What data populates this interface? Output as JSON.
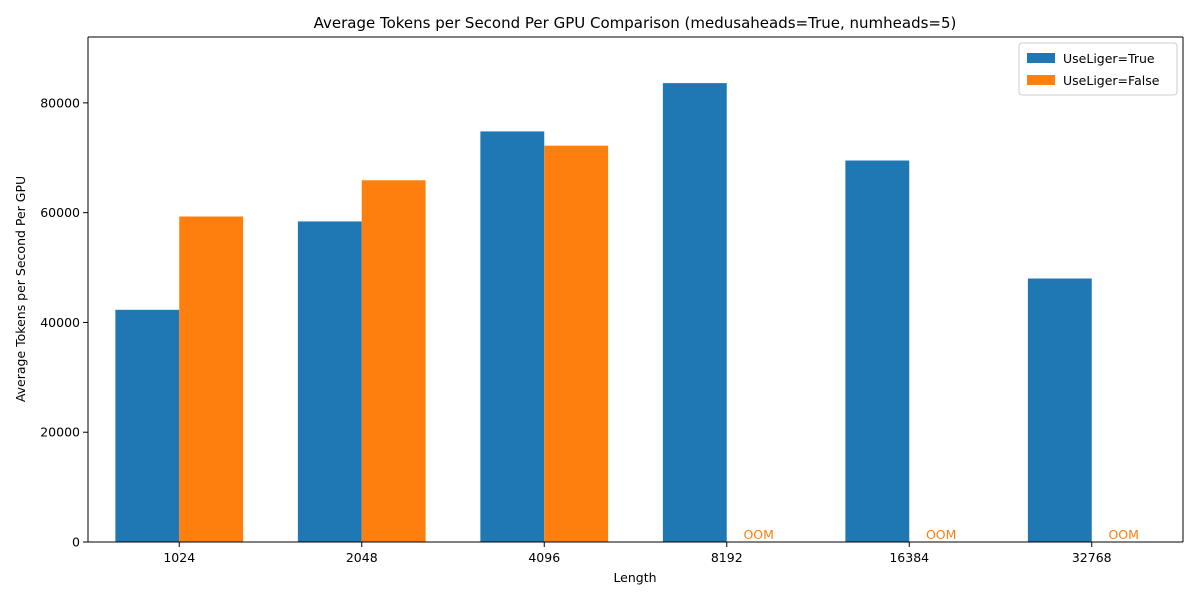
{
  "chart_data": {
    "type": "bar",
    "title": "Average Tokens per Second Per GPU Comparison (medusaheads=True, numheads=5)",
    "xlabel": "Length",
    "ylabel": "Average Tokens per Second Per GPU",
    "categories": [
      "1024",
      "2048",
      "4096",
      "8192",
      "16384",
      "32768"
    ],
    "ylim": [
      0,
      92000
    ],
    "yticks": [
      0,
      20000,
      40000,
      60000,
      80000
    ],
    "grid": false,
    "legend_position": "top-right",
    "series": [
      {
        "name": "UseLiger=True",
        "color": "#1f77b4",
        "values": [
          42300,
          58400,
          74800,
          83600,
          69500,
          48000
        ]
      },
      {
        "name": "UseLiger=False",
        "color": "#ff7f0e",
        "values": [
          59300,
          65900,
          72200,
          null,
          null,
          null
        ]
      }
    ],
    "annotations": [
      {
        "category": "8192",
        "series": "UseLiger=False",
        "text": "OOM",
        "color": "#ff7f0e"
      },
      {
        "category": "16384",
        "series": "UseLiger=False",
        "text": "OOM",
        "color": "#ff7f0e"
      },
      {
        "category": "32768",
        "series": "UseLiger=False",
        "text": "OOM",
        "color": "#ff7f0e"
      }
    ]
  }
}
